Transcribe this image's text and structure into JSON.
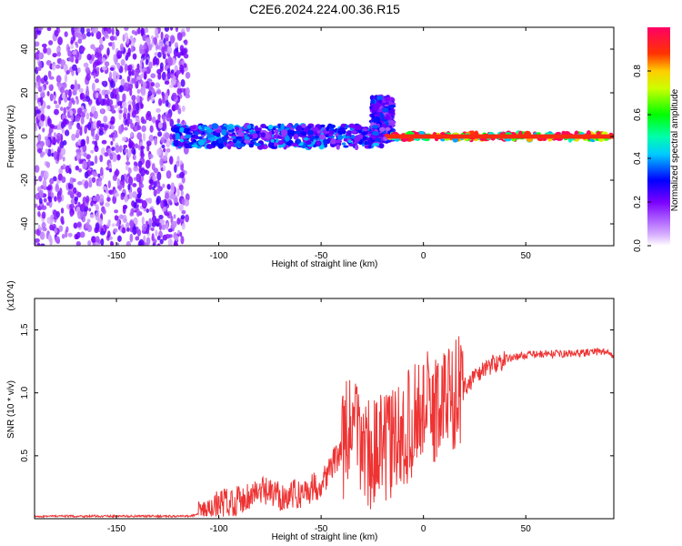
{
  "title": "C2E6.2024.224.00.36.R15",
  "chart_data": [
    {
      "type": "heatmap",
      "xlabel": "Height of straight line (km)",
      "ylabel": "Frequency (Hz)",
      "xlim": [
        -190,
        93
      ],
      "ylim": [
        -50,
        50
      ],
      "xticks": [
        -150,
        -100,
        -50,
        0,
        50
      ],
      "yticks": [
        -40,
        -20,
        0,
        20,
        40
      ],
      "colorbar": {
        "label": "Normalized spectral amplitude",
        "range": [
          0,
          1
        ],
        "ticks": [
          0.0,
          0.2,
          0.4,
          0.6,
          0.8
        ]
      },
      "features": [
        {
          "x_range": [
            -190,
            -115
          ],
          "freq_range": [
            -50,
            50
          ],
          "amplitude": 0.1
        },
        {
          "x_range": [
            -122,
            -20
          ],
          "freq_center": 0,
          "freq_halfwidth": 5,
          "amplitude": 0.35
        },
        {
          "x_range": [
            -25,
            -15
          ],
          "freq_center": 8,
          "freq_halfwidth": 10,
          "amplitude": 0.3
        },
        {
          "x_range": [
            -18,
            93
          ],
          "freq_center": 0,
          "freq_halfwidth": 1.5,
          "amplitude": 0.95
        }
      ]
    },
    {
      "type": "line",
      "xlabel": "Height of straight line (km)",
      "ylabel": "SNR (10 * v/v)",
      "yscale_note": "(x10^4)",
      "xlim": [
        -190,
        93
      ],
      "ylim": [
        0,
        1.75
      ],
      "xticks": [
        -150,
        -100,
        -50,
        0,
        50
      ],
      "yticks": [
        0.5,
        1.0,
        1.5
      ],
      "color": "#ee3333",
      "series": [
        {
          "x": [
            -190,
            -150,
            -115,
            -105,
            -100,
            -90,
            -80,
            -70,
            -60,
            -50,
            -40,
            -35,
            -30,
            -25,
            -20,
            -15,
            -10,
            -5,
            0,
            5,
            10,
            20,
            30,
            40,
            50,
            60,
            70,
            80,
            88,
            93
          ],
          "y": [
            0.02,
            0.02,
            0.02,
            0.05,
            0.12,
            0.15,
            0.22,
            0.18,
            0.2,
            0.28,
            0.55,
            0.75,
            0.6,
            0.5,
            0.55,
            0.6,
            0.65,
            0.8,
            0.9,
            0.85,
            0.95,
            1.05,
            1.2,
            1.27,
            1.3,
            1.31,
            1.31,
            1.32,
            1.33,
            1.3
          ]
        }
      ]
    }
  ]
}
